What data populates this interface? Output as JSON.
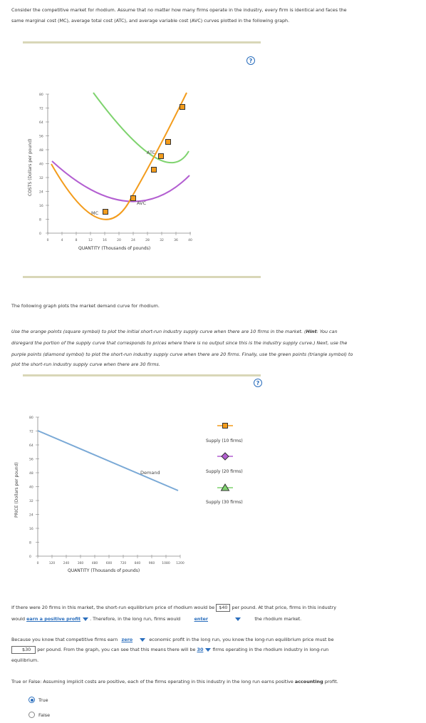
{
  "intro": {
    "line1": "Consider the competitive market for rhodium. Assume that no matter how many firms operate in the industry, every firm is identical and faces the",
    "line2": "same marginal cost (MC), average total cost (ATC), and average variable cost (AVC) curves plotted in the following graph."
  },
  "graph1": {
    "help_label": "?",
    "ylabel": "COSTS (Dollars per pound)",
    "xlabel": "QUANTITY (Thousands of pounds)",
    "yticks": [
      "80",
      "72",
      "64",
      "56",
      "48",
      "40",
      "32",
      "24",
      "16",
      "8",
      "0"
    ],
    "xticks": [
      "0",
      "4",
      "8",
      "12",
      "16",
      "20",
      "24",
      "28",
      "32",
      "36",
      "40"
    ],
    "labels": {
      "atc": "ATC",
      "avc": "AVC",
      "mc": "MC"
    },
    "colors": {
      "mc": "#f39c1c",
      "atc": "#7fd36f",
      "avc": "#b35fd1",
      "point_border": "#333333"
    }
  },
  "demand_text": "The following graph plots the market demand curve for rhodium.",
  "instructions": {
    "line1_a": "Use the orange points (square symbol) to plot the initial short-run industry supply curve when there are 10 firms in the market. (",
    "hint_label": "Hint",
    "line1_b": ": You can",
    "line2": "disregard the portion of the supply curve that corresponds to prices where there is no output since this is the industry supply curve.) Next, use the",
    "line3": "purple points (diamond symbol) to plot the short-run industry supply curve when there are 20 firms. Finally, use the green points (triangle symbol) to",
    "line4": "plot the short-run industry supply curve when there are 30 firms."
  },
  "graph2": {
    "help_label": "?",
    "ylabel": "PRICE (Dollars per pound)",
    "xlabel": "QUANTITY (Thousands of pounds)",
    "yticks": [
      "80",
      "72",
      "64",
      "56",
      "48",
      "40",
      "32",
      "24",
      "16",
      "8",
      "0"
    ],
    "xticks": [
      "0",
      "120",
      "240",
      "360",
      "480",
      "600",
      "720",
      "840",
      "960",
      "1080",
      "1200"
    ],
    "demand_label": "Demand",
    "demand_color": "#7aa9d6",
    "legend": [
      {
        "label": "Supply (10 firms)",
        "symbol": "square",
        "color": "#f39c1c"
      },
      {
        "label": "Supply (20 firms)",
        "symbol": "diamond",
        "color": "#b35fd1"
      },
      {
        "label": "Supply (30 firms)",
        "symbol": "triangle",
        "color": "#7fd36f"
      }
    ]
  },
  "q1": {
    "a": "If there were 20 firms in this market, the short-run equilibrium price of rhodium would be",
    "price": "$40",
    "b": "per pound. At that price, firms in this industry",
    "c": "would",
    "sel1": "earn a positive profit",
    "d": ". Therefore, in the long run, firms would",
    "sel2": "enter",
    "e": "the rhodium market."
  },
  "q2": {
    "a": "Because you know that competitive firms earn",
    "sel1": "zero",
    "b": "economic profit in the long run, you know the long-run equilibrium price must be",
    "price": "$30",
    "c": "per pound. From the graph, you can see that this means there will be",
    "sel2": "30",
    "d": "firms operating in the rhodium industry in long-run",
    "e": "equilibrium."
  },
  "q3": {
    "a": "True or False: Assuming implicit costs are positive, each of the firms operating in this industry in the long run earns positive",
    "bold": "accounting",
    "b": "profit.",
    "options": [
      "True",
      "False"
    ],
    "selected": "True"
  }
}
